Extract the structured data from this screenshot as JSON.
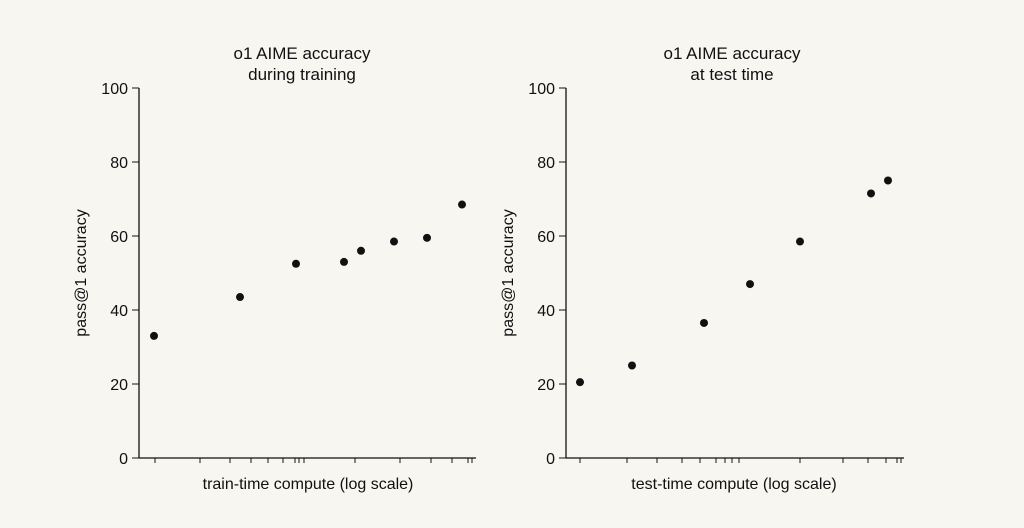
{
  "background": "#f8f6f1",
  "ink_color": "#111111",
  "chart_data": [
    {
      "type": "scatter",
      "title_lines": [
        "o1 AIME accuracy",
        "during training"
      ],
      "xlabel": "train-time compute (log scale)",
      "ylabel": "pass@1 accuracy",
      "x_scale": "log",
      "x_tick_labels_shown": false,
      "ylim": [
        0,
        100
      ],
      "yticks": [
        0,
        20,
        40,
        60,
        80,
        100
      ],
      "grid": false,
      "points_y": [
        33,
        43.5,
        52.5,
        53,
        56,
        58.5,
        59.5,
        68.5
      ]
    },
    {
      "type": "scatter",
      "title_lines": [
        "o1 AIME accuracy",
        "at test time"
      ],
      "xlabel": "test-time compute (log scale)",
      "ylabel": "pass@1 accuracy",
      "x_scale": "log",
      "x_tick_labels_shown": false,
      "ylim": [
        0,
        100
      ],
      "yticks": [
        0,
        20,
        40,
        60,
        80,
        100
      ],
      "grid": false,
      "points_y": [
        20.5,
        25,
        36.5,
        47,
        58.5,
        71.5,
        75
      ]
    }
  ]
}
